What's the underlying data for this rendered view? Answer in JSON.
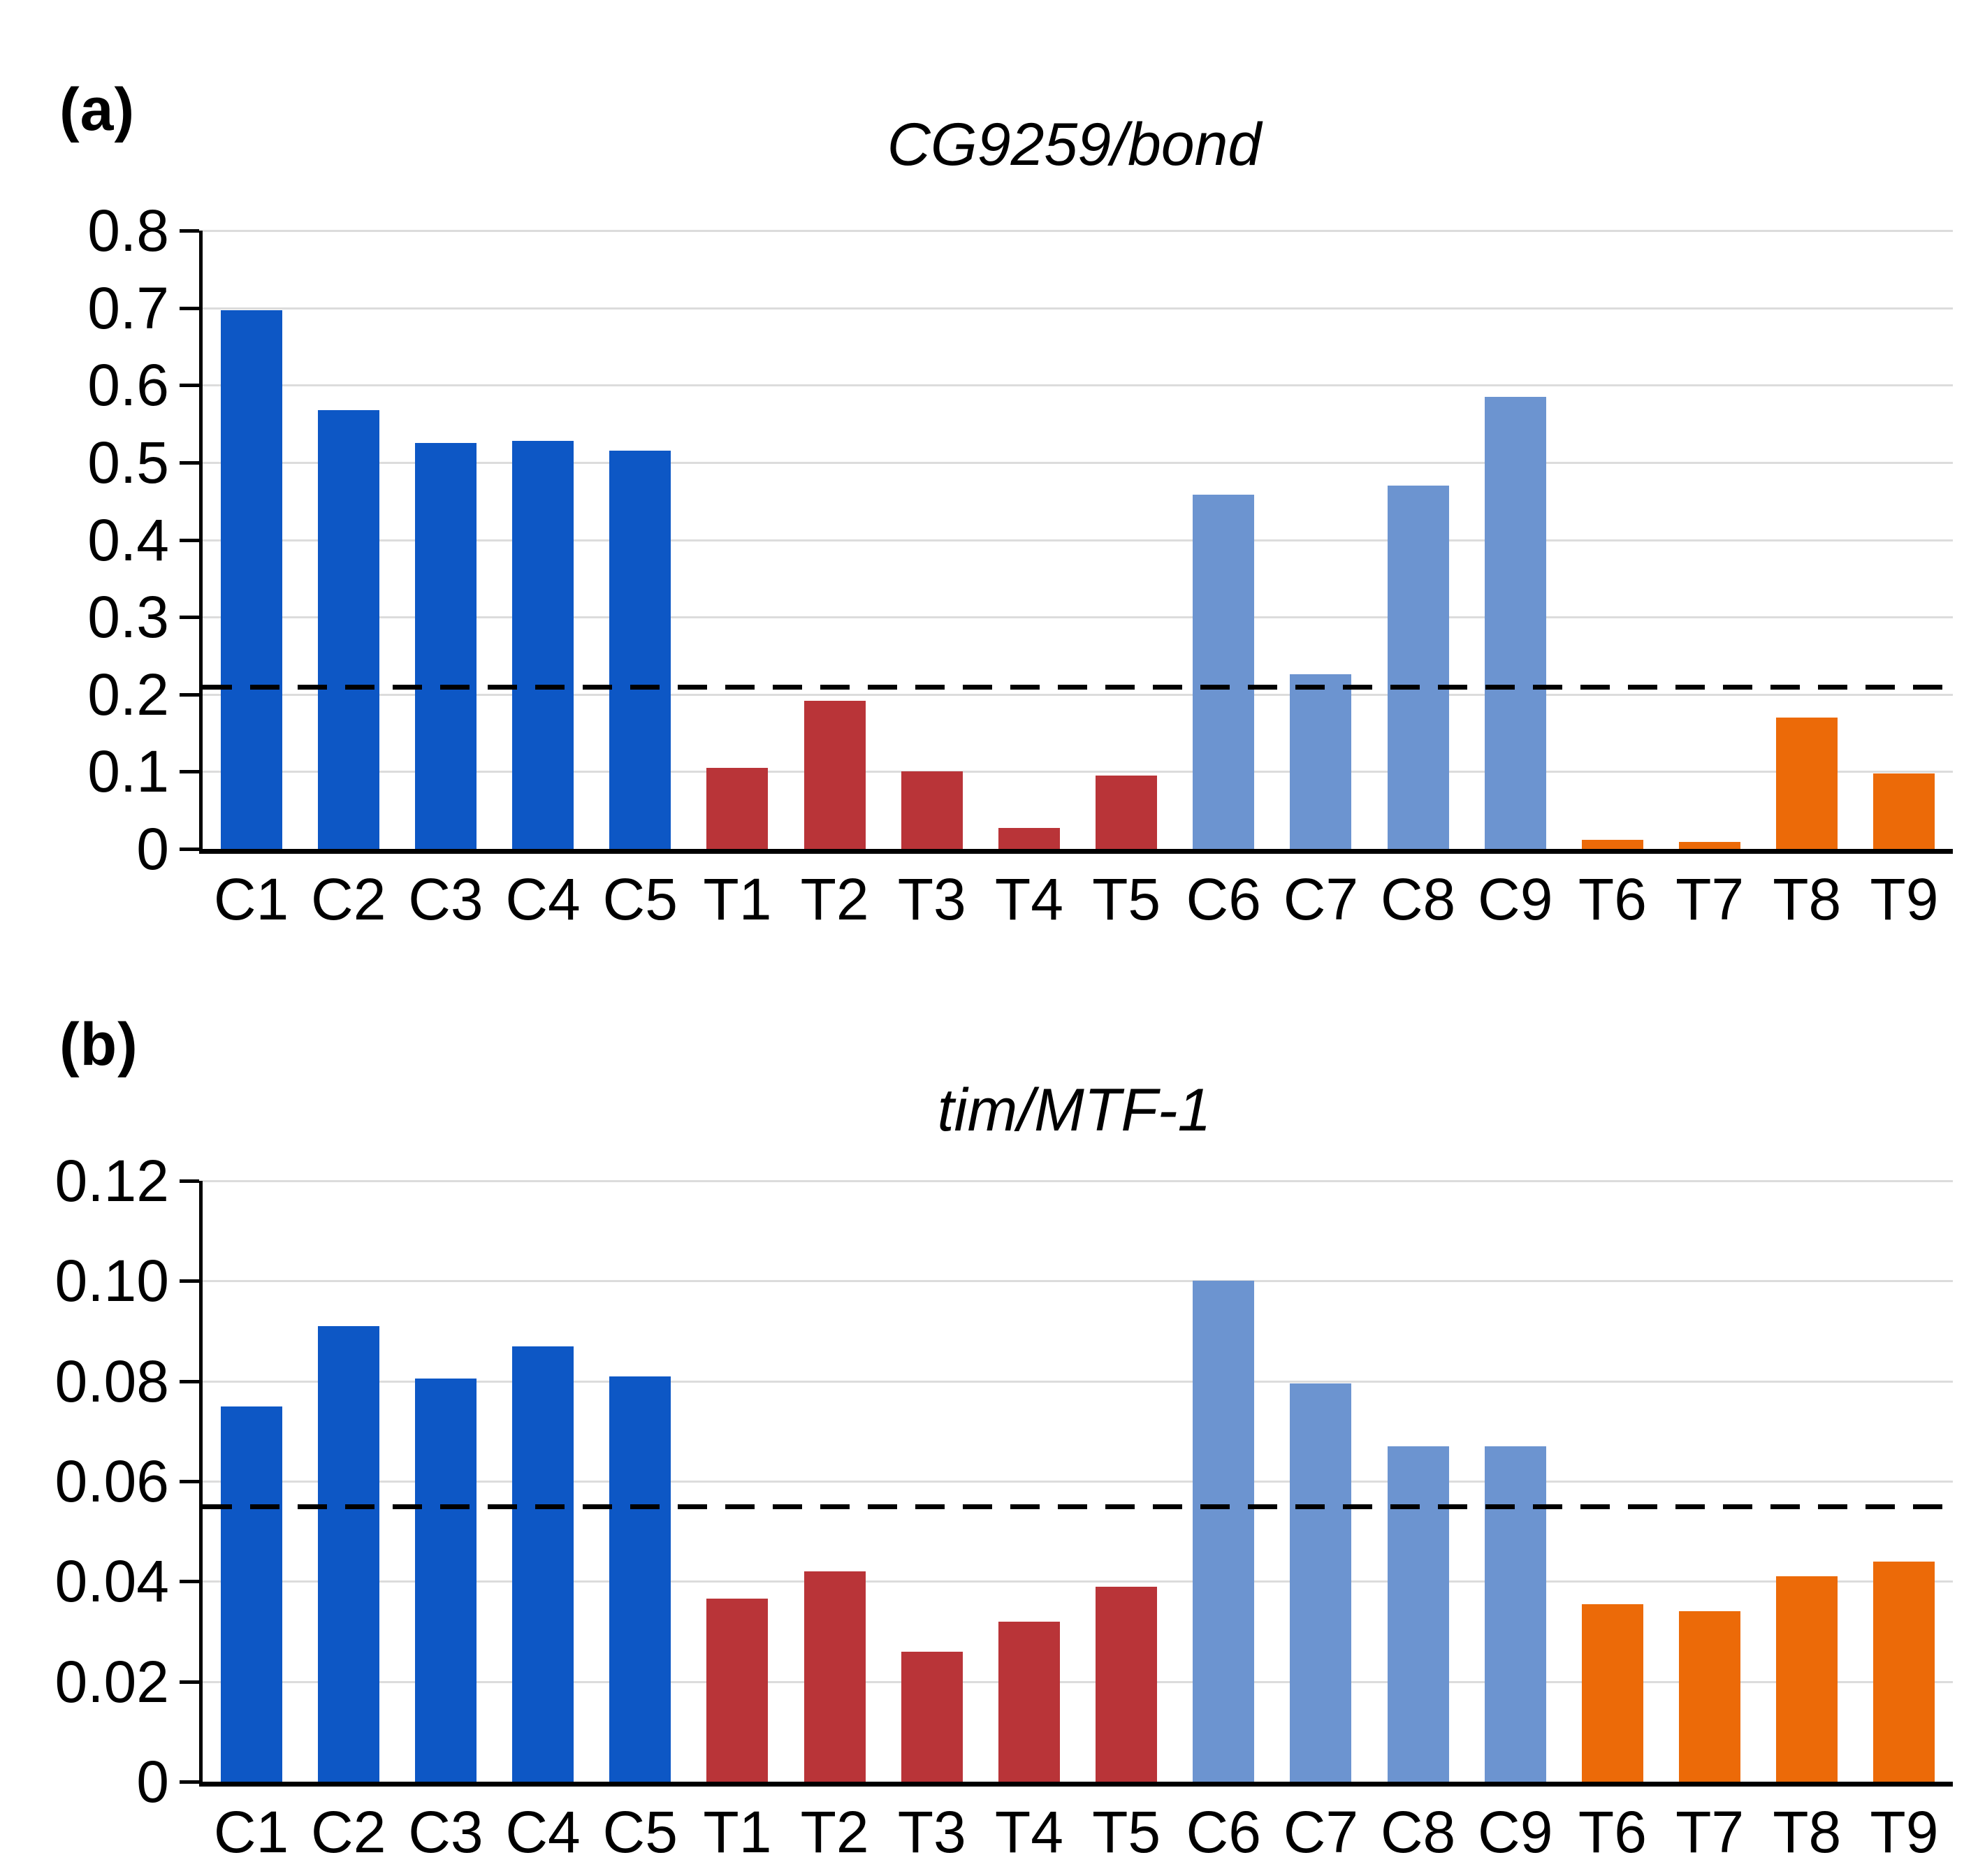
{
  "figure": {
    "background": "#ffffff",
    "text_color": "#000000",
    "gridline_color": "#dcdcdc",
    "axis_color": "#000000"
  },
  "chart_data": [
    {
      "type": "bar",
      "panel_label": "(a)",
      "title": "CG9259/bond",
      "categories": [
        "C1",
        "C2",
        "C3",
        "C4",
        "C5",
        "T1",
        "T2",
        "T3",
        "T4",
        "T5",
        "C6",
        "C7",
        "C8",
        "C9",
        "T6",
        "T7",
        "T8",
        "T9"
      ],
      "values": [
        0.697,
        0.568,
        0.525,
        0.528,
        0.515,
        0.105,
        0.192,
        0.1,
        0.027,
        0.095,
        0.458,
        0.226,
        0.47,
        0.585,
        0.012,
        0.009,
        0.17,
        0.098
      ],
      "groups": [
        "control1",
        "control1",
        "control1",
        "control1",
        "control1",
        "treated1",
        "treated1",
        "treated1",
        "treated1",
        "treated1",
        "control2",
        "control2",
        "control2",
        "control2",
        "treated2",
        "treated2",
        "treated2",
        "treated2"
      ],
      "colors": {
        "control1": "#0D57C5",
        "treated1": "#B93438",
        "control2": "#6C94D0",
        "treated2": "#EC6A08"
      },
      "threshold_dashed_line": 0.21,
      "ylim": [
        0,
        0.8
      ],
      "yticks": [
        0,
        0.1,
        0.2,
        0.3,
        0.4,
        0.5,
        0.6,
        0.7,
        0.8
      ],
      "ytick_labels": [
        "0",
        "0.1",
        "0.2",
        "0.3",
        "0.4",
        "0.5",
        "0.6",
        "0.7",
        "0.8"
      ],
      "xlabel": "",
      "ylabel": "",
      "grid": "horizontal",
      "legend": "none"
    },
    {
      "type": "bar",
      "panel_label": "(b)",
      "title": "tim/MTF-1",
      "categories": [
        "C1",
        "C2",
        "C3",
        "C4",
        "C5",
        "T1",
        "T2",
        "T3",
        "T4",
        "T5",
        "C6",
        "C7",
        "C8",
        "C9",
        "T6",
        "T7",
        "T8",
        "T9"
      ],
      "values": [
        0.075,
        0.091,
        0.0805,
        0.087,
        0.081,
        0.0365,
        0.042,
        0.026,
        0.032,
        0.039,
        0.1,
        0.0795,
        0.067,
        0.067,
        0.0355,
        0.034,
        0.041,
        0.044
      ],
      "groups": [
        "control1",
        "control1",
        "control1",
        "control1",
        "control1",
        "treated1",
        "treated1",
        "treated1",
        "treated1",
        "treated1",
        "control2",
        "control2",
        "control2",
        "control2",
        "treated2",
        "treated2",
        "treated2",
        "treated2"
      ],
      "colors": {
        "control1": "#0D57C5",
        "treated1": "#B93438",
        "control2": "#6C94D0",
        "treated2": "#EC6A08"
      },
      "threshold_dashed_line": 0.055,
      "ylim": [
        0,
        0.12
      ],
      "yticks": [
        0,
        0.02,
        0.04,
        0.06,
        0.08,
        0.1,
        0.12
      ],
      "ytick_labels": [
        "0",
        "0.02",
        "0.04",
        "0.06",
        "0.08",
        "0.10",
        "0.12"
      ],
      "xlabel": "",
      "ylabel": "",
      "grid": "horizontal",
      "legend": "none"
    }
  ]
}
